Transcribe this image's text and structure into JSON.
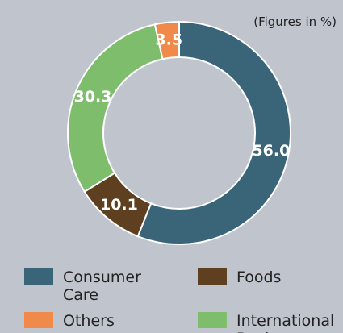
{
  "chart_data": {
    "type": "donut",
    "subtitle": "(Figures in %)",
    "categories": [
      "Consumer Care",
      "Foods",
      "International Business",
      "Others"
    ],
    "values": [
      56.0,
      10.1,
      30.3,
      3.5
    ],
    "value_labels": [
      "56.0",
      "10.1",
      "30.3",
      "3.5"
    ],
    "colors": [
      "#3a6478",
      "#5e3f1f",
      "#7dbd6b",
      "#f08a4b"
    ]
  }
}
